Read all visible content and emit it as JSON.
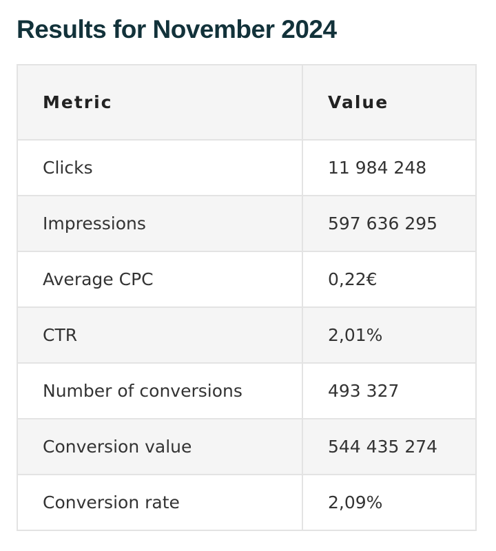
{
  "header": {
    "title": "Results for November 2024"
  },
  "table": {
    "columns": [
      "Metric",
      "Value"
    ],
    "rows": [
      [
        "Clicks",
        "11 984 248"
      ],
      [
        "Impressions",
        "597 636 295"
      ],
      [
        "Average CPC",
        "0,22€"
      ],
      [
        "CTR",
        "2,01%"
      ],
      [
        "Number of conversions",
        "493 327"
      ],
      [
        "Conversion value",
        "544 435 274"
      ],
      [
        "Conversion rate",
        "2,09%"
      ]
    ]
  }
}
